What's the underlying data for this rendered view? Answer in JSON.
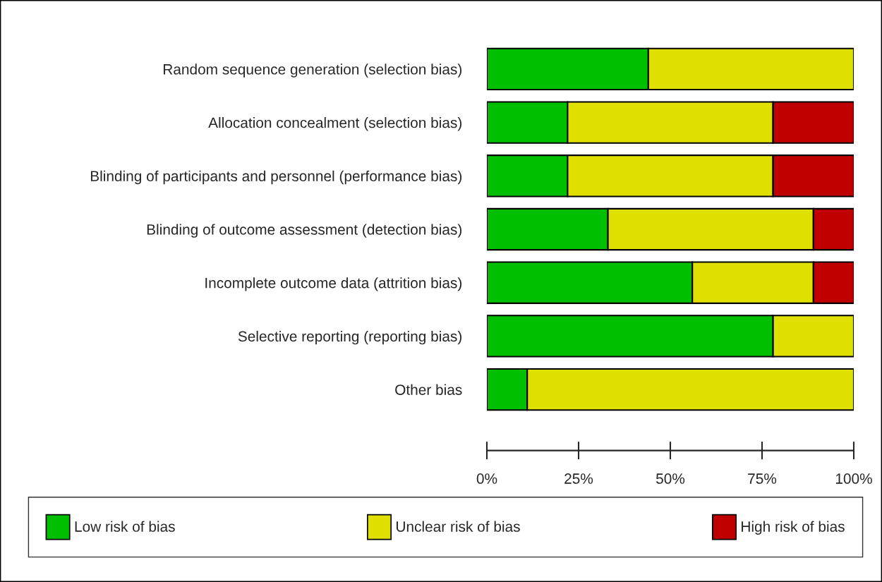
{
  "chart_data": {
    "type": "bar",
    "orientation": "horizontal",
    "stacked": true,
    "categories": [
      "Random sequence generation (selection bias)",
      "Allocation concealment (selection bias)",
      "Blinding of participants and personnel (performance bias)",
      "Blinding of outcome assessment (detection bias)",
      "Incomplete outcome data (attrition bias)",
      "Selective reporting (reporting bias)",
      "Other bias"
    ],
    "series": [
      {
        "name": "Low risk of bias",
        "color": "#00bf00",
        "values": [
          44,
          22,
          22,
          33,
          56,
          78,
          11
        ]
      },
      {
        "name": "Unclear risk of bias",
        "color": "#e0e000",
        "values": [
          56,
          56,
          56,
          56,
          33,
          22,
          89
        ]
      },
      {
        "name": "High risk of bias",
        "color": "#c00000",
        "values": [
          null,
          22,
          22,
          11,
          11,
          null,
          null
        ]
      }
    ],
    "xlim": [
      0,
      100
    ],
    "xticks": [
      {
        "value": 0,
        "label": "0%"
      },
      {
        "value": 25,
        "label": "25%"
      },
      {
        "value": 50,
        "label": "50%"
      },
      {
        "value": 75,
        "label": "75%"
      },
      {
        "value": 100,
        "label": "100%"
      }
    ],
    "grid": false,
    "legend": "bottom"
  }
}
